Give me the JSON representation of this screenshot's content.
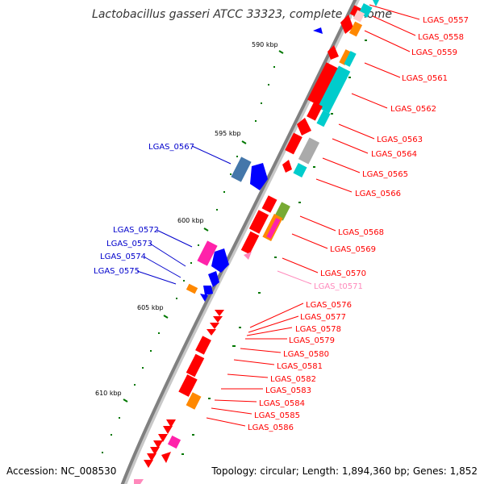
{
  "title": "Lactobacillus gasseri ATCC 33323, complete genome",
  "accession": "Accession: NC_008530",
  "topology": "Topology: circular; Length: 1,894,360 bp; Genes: 1,852",
  "colors": {
    "backbone": "#808080",
    "tick": "#007700",
    "red_label": "#ff0000",
    "blue_label": "#0000cc",
    "pink_label": "#ff88bb",
    "cds_red": "#ff0000",
    "cds_blue": "#0000ff",
    "cds_cyan": "#00cccc",
    "cds_orange": "#ff8800",
    "cds_magenta": "#ff22aa",
    "cds_steelblue": "#4477aa",
    "cds_gray": "#aaaaaa",
    "cds_green": "#77aa33"
  },
  "kbp_markers": [
    "590 kbp",
    "595 kbp",
    "600 kbp",
    "605 kbp",
    "610 kbp"
  ],
  "gene_labels_right": [
    "LGAS_0557",
    "LGAS_0558",
    "LGAS_0559",
    "LGAS_0561",
    "LGAS_0562",
    "LGAS_0563",
    "LGAS_0564",
    "LGAS_0565",
    "LGAS_0566",
    "LGAS_0568",
    "LGAS_0569",
    "LGAS_0570",
    "LGAS_t0571",
    "LGAS_0576",
    "LGAS_0577",
    "LGAS_0578",
    "LGAS_0579",
    "LGAS_0580",
    "LGAS_0581",
    "LGAS_0582",
    "LGAS_0583",
    "LGAS_0584",
    "LGAS_0585",
    "LGAS_0586"
  ],
  "gene_labels_left": [
    "LGAS_0567",
    "LGAS_0572",
    "LGAS_0573",
    "LGAS_0574",
    "LGAS_0575"
  ]
}
